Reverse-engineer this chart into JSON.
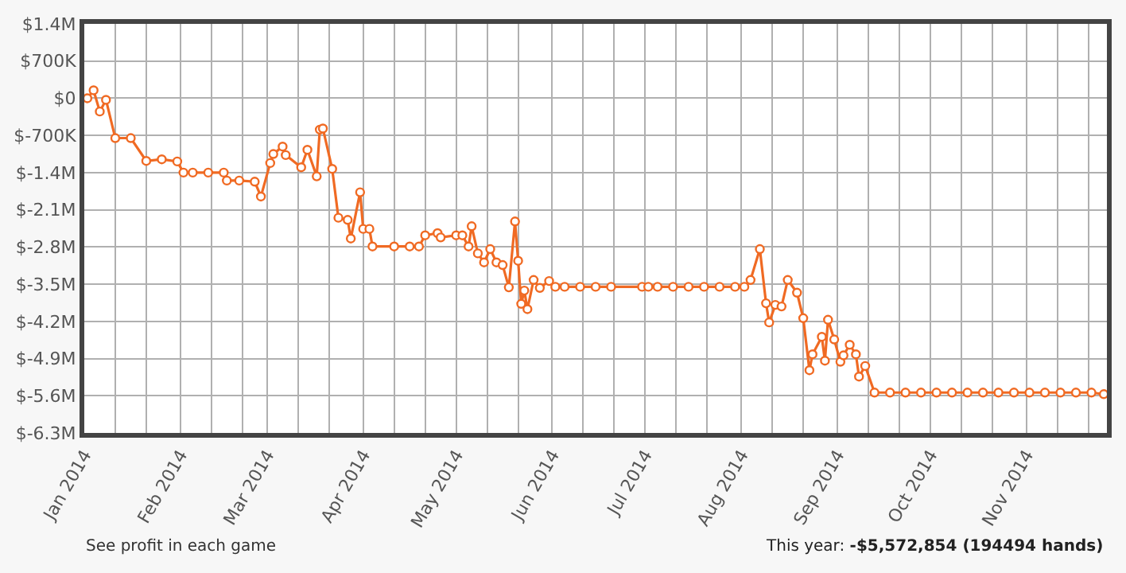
{
  "chart_data": {
    "type": "line",
    "marker": "circle",
    "line_style": "solid",
    "grid": true,
    "x": [
      "2014-01-02",
      "2014-01-04",
      "2014-01-06",
      "2014-01-08",
      "2014-01-11",
      "2014-01-16",
      "2014-01-21",
      "2014-01-26",
      "2014-01-31",
      "2014-02-02",
      "2014-02-05",
      "2014-02-10",
      "2014-02-15",
      "2014-02-16",
      "2014-02-20",
      "2014-02-25",
      "2014-02-27",
      "2014-03-02",
      "2014-03-03",
      "2014-03-06",
      "2014-03-07",
      "2014-03-12",
      "2014-03-14",
      "2014-03-17",
      "2014-03-18",
      "2014-03-19",
      "2014-03-22",
      "2014-03-24",
      "2014-03-27",
      "2014-03-28",
      "2014-03-31",
      "2014-04-01",
      "2014-04-03",
      "2014-04-04",
      "2014-04-11",
      "2014-04-16",
      "2014-04-19",
      "2014-04-21",
      "2014-04-25",
      "2014-04-26",
      "2014-05-01",
      "2014-05-03",
      "2014-05-05",
      "2014-05-06",
      "2014-05-08",
      "2014-05-10",
      "2014-05-12",
      "2014-05-14",
      "2014-05-16",
      "2014-05-18",
      "2014-05-20",
      "2014-05-21",
      "2014-05-22",
      "2014-05-23",
      "2014-05-24",
      "2014-05-26",
      "2014-05-28",
      "2014-05-31",
      "2014-06-02",
      "2014-06-05",
      "2014-06-10",
      "2014-06-15",
      "2014-06-20",
      "2014-06-30",
      "2014-07-02",
      "2014-07-05",
      "2014-07-10",
      "2014-07-15",
      "2014-07-20",
      "2014-07-25",
      "2014-07-30",
      "2014-08-02",
      "2014-08-04",
      "2014-08-07",
      "2014-08-09",
      "2014-08-10",
      "2014-08-12",
      "2014-08-14",
      "2014-08-16",
      "2014-08-19",
      "2014-08-21",
      "2014-08-23",
      "2014-08-24",
      "2014-08-27",
      "2014-08-28",
      "2014-08-29",
      "2014-08-31",
      "2014-09-02",
      "2014-09-03",
      "2014-09-05",
      "2014-09-07",
      "2014-09-08",
      "2014-09-10",
      "2014-09-13",
      "2014-09-18",
      "2014-09-23",
      "2014-09-28",
      "2014-10-03",
      "2014-10-08",
      "2014-10-13",
      "2014-10-18",
      "2014-10-23",
      "2014-10-28",
      "2014-11-02",
      "2014-11-07",
      "2014-11-12",
      "2014-11-17",
      "2014-11-22",
      "2014-11-26"
    ],
    "series": [
      {
        "color": "#f06a23",
        "values": [
          0,
          150000,
          -250000,
          -30000,
          -750000,
          -750000,
          -1180000,
          -1150000,
          -1190000,
          -1400000,
          -1400000,
          -1400000,
          -1400000,
          -1550000,
          -1550000,
          -1570000,
          -1850000,
          -1220000,
          -1050000,
          -910000,
          -1070000,
          -1300000,
          -970000,
          -1470000,
          -590000,
          -570000,
          -1330000,
          -2250000,
          -2290000,
          -2640000,
          -1770000,
          -2460000,
          -2460000,
          -2790000,
          -2790000,
          -2790000,
          -2790000,
          -2580000,
          -2540000,
          -2620000,
          -2580000,
          -2580000,
          -2790000,
          -2410000,
          -2920000,
          -3090000,
          -2840000,
          -3090000,
          -3140000,
          -3560000,
          -2320000,
          -3060000,
          -3870000,
          -3620000,
          -3970000,
          -3420000,
          -3570000,
          -3440000,
          -3550000,
          -3550000,
          -3550000,
          -3550000,
          -3550000,
          -3550000,
          -3550000,
          -3550000,
          -3550000,
          -3550000,
          -3550000,
          -3550000,
          -3550000,
          -3550000,
          -3420000,
          -2840000,
          -3860000,
          -4220000,
          -3890000,
          -3920000,
          -3420000,
          -3660000,
          -4140000,
          -5120000,
          -4820000,
          -4490000,
          -4940000,
          -4170000,
          -4540000,
          -4960000,
          -4840000,
          -4640000,
          -4820000,
          -5240000,
          -5040000,
          -5540000,
          -5540000,
          -5540000,
          -5540000,
          -5540000,
          -5540000,
          -5540000,
          -5540000,
          -5540000,
          -5540000,
          -5540000,
          -5540000,
          -5540000,
          -5540000,
          -5540000,
          -5570000
        ]
      }
    ],
    "ylim": [
      -6300000,
      1400000
    ],
    "yticks": [
      {
        "value": 1400000,
        "label": "$1.4M"
      },
      {
        "value": 700000,
        "label": "$700K"
      },
      {
        "value": 0,
        "label": "$0"
      },
      {
        "value": -700000,
        "label": "$-700K"
      },
      {
        "value": -1400000,
        "label": "$-1.4M"
      },
      {
        "value": -2100000,
        "label": "$-2.1M"
      },
      {
        "value": -2800000,
        "label": "$-2.8M"
      },
      {
        "value": -3500000,
        "label": "$-3.5M"
      },
      {
        "value": -4200000,
        "label": "$-4.2M"
      },
      {
        "value": -4900000,
        "label": "$-4.9M"
      },
      {
        "value": -5600000,
        "label": "$-5.6M"
      },
      {
        "value": -6300000,
        "label": "$-6.3M"
      }
    ],
    "xlim": [
      "2014-01-01",
      "2014-11-27"
    ],
    "xticks": [
      {
        "value": "2014-01-01",
        "label": "Jan 2014"
      },
      {
        "value": "2014-01-11",
        "label": null
      },
      {
        "value": "2014-01-21",
        "label": null
      },
      {
        "value": "2014-02-01",
        "label": "Feb 2014"
      },
      {
        "value": "2014-02-11",
        "label": null
      },
      {
        "value": "2014-02-21",
        "label": null
      },
      {
        "value": "2014-03-01",
        "label": "Mar 2014"
      },
      {
        "value": "2014-03-11",
        "label": null
      },
      {
        "value": "2014-03-21",
        "label": null
      },
      {
        "value": "2014-04-01",
        "label": "Apr 2014"
      },
      {
        "value": "2014-04-11",
        "label": null
      },
      {
        "value": "2014-04-21",
        "label": null
      },
      {
        "value": "2014-05-01",
        "label": "May 2014"
      },
      {
        "value": "2014-05-11",
        "label": null
      },
      {
        "value": "2014-05-21",
        "label": null
      },
      {
        "value": "2014-06-01",
        "label": "Jun 2014"
      },
      {
        "value": "2014-06-11",
        "label": null
      },
      {
        "value": "2014-06-21",
        "label": null
      },
      {
        "value": "2014-07-01",
        "label": "Jul 2014"
      },
      {
        "value": "2014-07-11",
        "label": null
      },
      {
        "value": "2014-07-21",
        "label": null
      },
      {
        "value": "2014-08-01",
        "label": "Aug 2014"
      },
      {
        "value": "2014-08-11",
        "label": null
      },
      {
        "value": "2014-08-21",
        "label": null
      },
      {
        "value": "2014-09-01",
        "label": "Sep 2014"
      },
      {
        "value": "2014-09-11",
        "label": null
      },
      {
        "value": "2014-09-21",
        "label": null
      },
      {
        "value": "2014-10-01",
        "label": "Oct 2014"
      },
      {
        "value": "2014-10-11",
        "label": null
      },
      {
        "value": "2014-10-21",
        "label": null
      },
      {
        "value": "2014-11-01",
        "label": "Nov 2014"
      },
      {
        "value": "2014-11-11",
        "label": null
      },
      {
        "value": "2014-11-21",
        "label": null
      }
    ],
    "annotations": [
      "See profit in each game",
      "This year:",
      "-$5,572,854 (194494 hands)"
    ]
  }
}
